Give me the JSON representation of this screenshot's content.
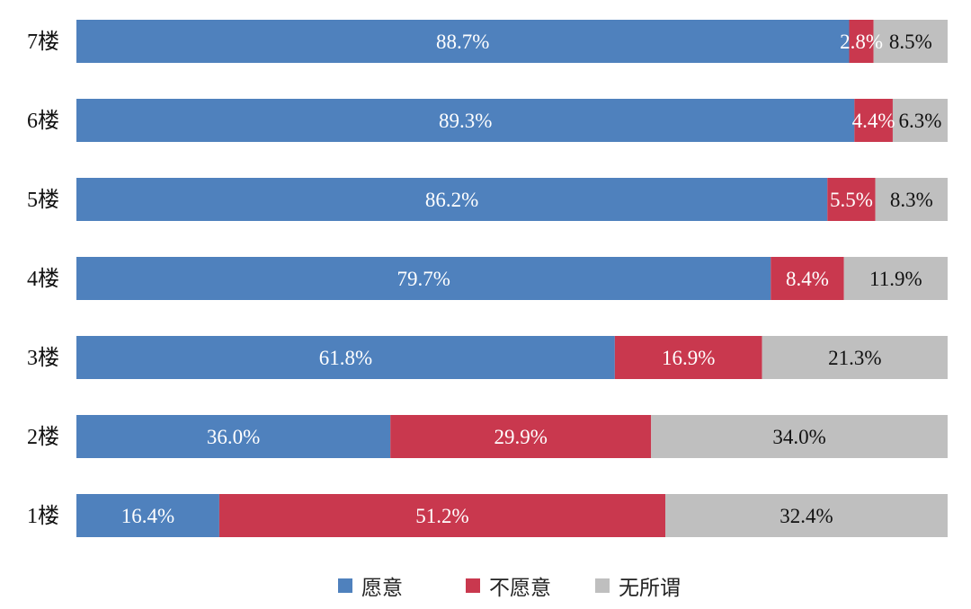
{
  "chart_data": {
    "type": "bar",
    "orientation": "horizontal",
    "stacked": true,
    "percent_stacked": true,
    "categories": [
      "7楼",
      "6楼",
      "5楼",
      "4楼",
      "3楼",
      "2楼",
      "1楼"
    ],
    "series": [
      {
        "name": "愿意",
        "color": "#4F81BD",
        "values": [
          88.7,
          89.3,
          86.2,
          79.7,
          61.8,
          36.0,
          16.4
        ],
        "labels": [
          "88.7%",
          "89.3%",
          "86.2%",
          "79.7%",
          "61.8%",
          "36.0%",
          "16.4%"
        ]
      },
      {
        "name": "不愿意",
        "color": "#C9384E",
        "values": [
          2.8,
          4.4,
          5.5,
          8.4,
          16.9,
          29.9,
          51.2
        ],
        "labels": [
          "2.8%",
          "4.4%",
          "5.5%",
          "8.4%",
          "16.9%",
          "29.9%",
          "51.2%"
        ]
      },
      {
        "name": "无所谓",
        "color": "#BFBFBF",
        "values": [
          8.5,
          6.3,
          8.3,
          11.9,
          21.3,
          34.0,
          32.4
        ],
        "labels": [
          "8.5%",
          "6.3%",
          "8.3%",
          "11.9%",
          "21.3%",
          "34.0%",
          "32.4%"
        ]
      }
    ],
    "label_colors": [
      "#FFFFFF",
      "#FFFFFF",
      "#111111"
    ],
    "legend_position": "bottom",
    "grid": false
  }
}
